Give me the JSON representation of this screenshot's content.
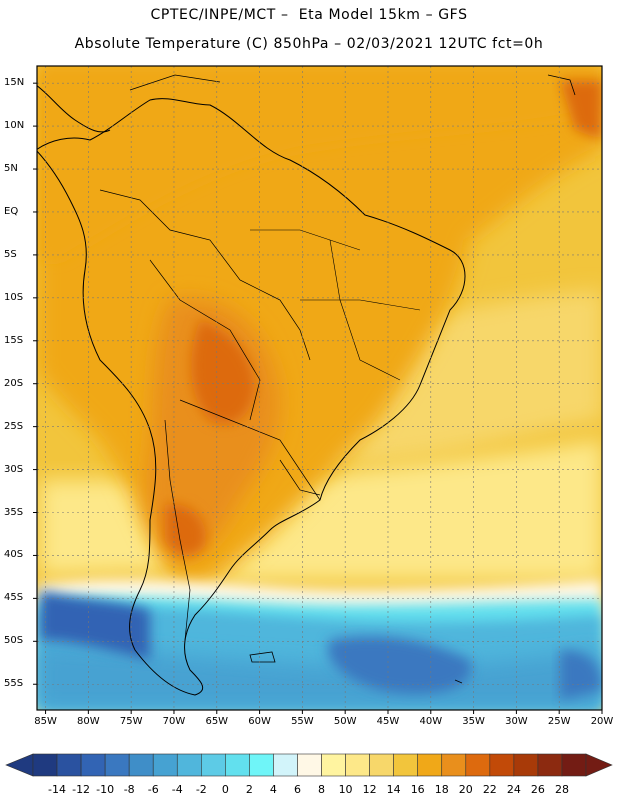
{
  "title": {
    "line1": "CPTEC/INPE/MCT –  Eta Model 15km – GFS",
    "line2": "Absolute Temperature (C) 850hPa – 02/03/2021 12UTC fct=0h"
  },
  "axes": {
    "lat_labels": [
      "15N",
      "10N",
      "5N",
      "EQ",
      "5S",
      "10S",
      "15S",
      "20S",
      "25S",
      "30S",
      "35S",
      "40S",
      "45S",
      "50S",
      "55S"
    ],
    "lon_labels": [
      "85W",
      "80W",
      "75W",
      "70W",
      "65W",
      "60W",
      "55W",
      "50W",
      "45W",
      "40W",
      "35W",
      "30W",
      "25W",
      "20W"
    ]
  },
  "colorbar": {
    "labels": [
      "-14",
      "-12",
      "-10",
      "-8",
      "-6",
      "-4",
      "-2",
      "0",
      "2",
      "4",
      "6",
      "8",
      "10",
      "12",
      "14",
      "16",
      "18",
      "20",
      "22",
      "24",
      "26",
      "28"
    ],
    "colors": [
      "#1f3a80",
      "#2a52a0",
      "#3264b4",
      "#3a78c0",
      "#3f8ec8",
      "#46a2d2",
      "#50b6dc",
      "#5dcbe6",
      "#62e0ee",
      "#6ff5f8",
      "#d2f4fa",
      "#fff8e6",
      "#fff4a0",
      "#fde889",
      "#f7d76a",
      "#f2c53c",
      "#f0a818",
      "#e98f1c",
      "#dd6a0e",
      "#c24a08",
      "#a83a08",
      "#8c2a10",
      "#731c14"
    ],
    "under_color": "#1f3a80",
    "over_color": "#731c14"
  },
  "map": {
    "projection": "lat-lon",
    "lat_range": [
      -58,
      17
    ],
    "lon_range": [
      -86,
      -20
    ],
    "field": "temperature 850hPa",
    "grid": "dashed",
    "color_regions": {
      "ocean_tropical": "#f2c53c",
      "continent_warm": "#f0a818",
      "hot_core": "#dd6a0e",
      "cold_south": "#3264b4",
      "southern_ocean": "#50b6dc"
    }
  }
}
